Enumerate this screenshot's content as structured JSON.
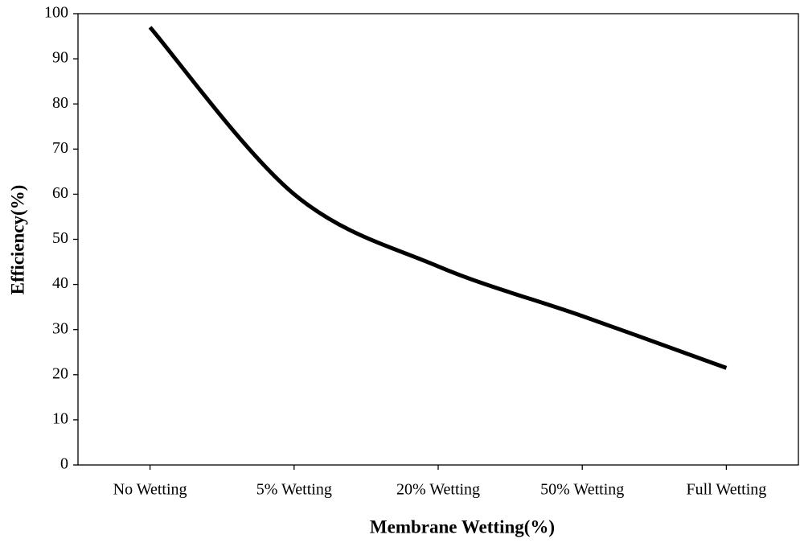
{
  "chart_data": {
    "type": "line",
    "x_label": "Membrane Wetting(%)",
    "y_label": "Efficiency(%)",
    "categories": [
      "No Wetting",
      "5% Wetting",
      "20% Wetting",
      "50% Wetting",
      "Full Wetting"
    ],
    "series": [
      {
        "name": "Efficiency",
        "color": "#000000",
        "values": [
          97,
          60,
          44,
          33,
          21.5
        ]
      }
    ],
    "ylim": [
      0,
      100
    ],
    "yticks": [
      0,
      10,
      20,
      30,
      40,
      50,
      60,
      70,
      80,
      90,
      100
    ]
  }
}
